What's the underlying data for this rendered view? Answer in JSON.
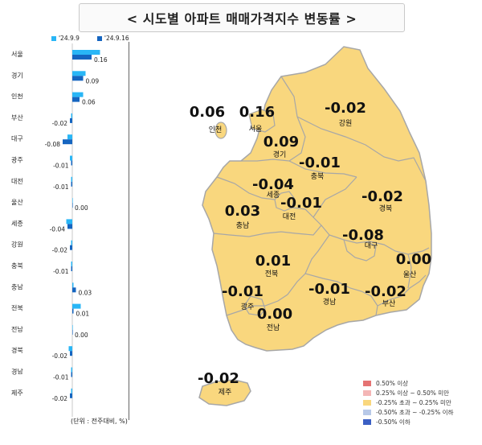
{
  "title": "< 시도별 아파트 매매가격지수 변동률 >",
  "bar_legend": [
    {
      "label": "'24.9.9",
      "color": "#29b6f6"
    },
    {
      "label": "'24.9.16",
      "color": "#1565c0"
    }
  ],
  "unit_note": "(단위 : 전주대비, %)",
  "chart_data": {
    "type": "bar",
    "orientation": "horizontal",
    "categories": [
      "서울",
      "경기",
      "인천",
      "부산",
      "대구",
      "광주",
      "대전",
      "울산",
      "세종",
      "강원",
      "충북",
      "충남",
      "전북",
      "전남",
      "경북",
      "경남",
      "제주"
    ],
    "series": [
      {
        "name": "'24.9.9",
        "values": [
          0.23,
          0.11,
          0.09,
          -0.01,
          -0.04,
          -0.02,
          -0.01,
          0.0,
          -0.05,
          -0.01,
          -0.01,
          0.01,
          0.07,
          0.0,
          -0.03,
          -0.01,
          -0.01
        ]
      },
      {
        "name": "'24.9.16",
        "values": [
          0.16,
          0.09,
          0.06,
          -0.02,
          -0.08,
          -0.01,
          -0.01,
          0.0,
          -0.04,
          -0.02,
          -0.01,
          0.03,
          0.01,
          0.0,
          -0.02,
          -0.01,
          -0.02
        ]
      }
    ],
    "data_labels": [
      "0.16",
      "0.09",
      "0.06",
      "-0.02",
      "-0.08",
      "-0.01",
      "-0.01",
      "0.00",
      "-0.04",
      "-0.02",
      "-0.01",
      "0.03",
      "0.01",
      "0.00",
      "-0.02",
      "-0.01",
      "-0.02"
    ]
  },
  "map": {
    "fill_color": "#f9d77e",
    "border_color": "#a7a7a7",
    "regions": [
      {
        "name": "인천",
        "value": "0.06"
      },
      {
        "name": "서울",
        "value": "0.16"
      },
      {
        "name": "경기",
        "value": "0.09"
      },
      {
        "name": "강원",
        "value": "-0.02"
      },
      {
        "name": "충북",
        "value": "-0.01"
      },
      {
        "name": "세종",
        "value": "-0.04"
      },
      {
        "name": "대전",
        "value": "-0.01"
      },
      {
        "name": "충남",
        "value": "0.03"
      },
      {
        "name": "경북",
        "value": "-0.02"
      },
      {
        "name": "대구",
        "value": "-0.08"
      },
      {
        "name": "전북",
        "value": "0.01"
      },
      {
        "name": "울산",
        "value": "0.00"
      },
      {
        "name": "광주",
        "value": "-0.01"
      },
      {
        "name": "경남",
        "value": "-0.01"
      },
      {
        "name": "부산",
        "value": "-0.02"
      },
      {
        "name": "전남",
        "value": "0.00"
      },
      {
        "name": "제주",
        "value": "-0.02"
      }
    ]
  },
  "map_legend": [
    {
      "label": "0.50% 이상",
      "color": "#e57373"
    },
    {
      "label": "0.25% 이상 ~ 0.50% 미만",
      "color": "#f4b6b6"
    },
    {
      "label": "-0.25% 초과 ~ 0.25% 미만",
      "color": "#f9d77e"
    },
    {
      "label": "-0.50% 초과 ~ -0.25% 이하",
      "color": "#b8c9e8"
    },
    {
      "label": "-0.50% 이하",
      "color": "#3b5fc4"
    }
  ]
}
